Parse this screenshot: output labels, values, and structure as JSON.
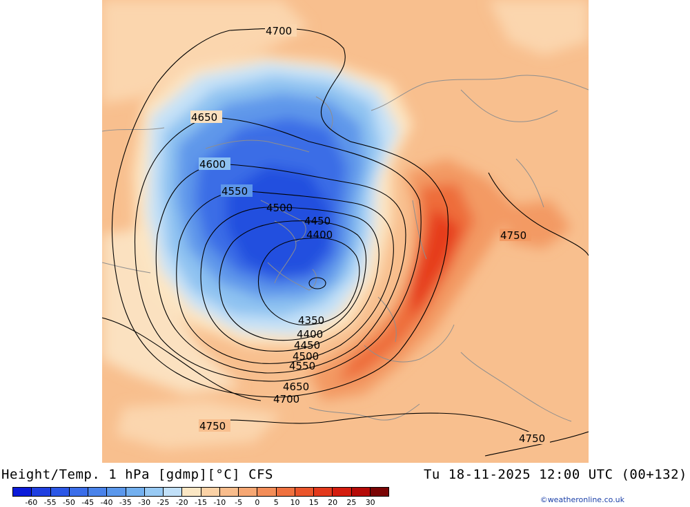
{
  "map": {
    "title": "Height/Temp. 1 hPa [gdmp][°C] CFS",
    "valid_time": "Tu 18-11-2025 12:00 UTC (00+132)",
    "credit": "©weatheronline.co.uk",
    "contour_labels": [
      "4700",
      "4650",
      "4600",
      "4550",
      "4500",
      "4450",
      "4400",
      "4350",
      "4400",
      "4450",
      "4500",
      "4550",
      "4650",
      "4700",
      "4750",
      "4750",
      "4750"
    ],
    "colorbar": {
      "labels": [
        "-60",
        "-55",
        "-50",
        "-45",
        "-40",
        "-35",
        "-30",
        "-25",
        "-20",
        "-15",
        "-10",
        "-5",
        "0",
        "5",
        "10",
        "15",
        "20",
        "25",
        "30"
      ],
      "colors": [
        "#0b1bd9",
        "#1f3fe0",
        "#2b57e6",
        "#3b6ee9",
        "#4a83ea",
        "#5b98ec",
        "#73b0ef",
        "#98caf4",
        "#c1e0f8",
        "#fbe7c4",
        "#fbd2a6",
        "#f9bd8c",
        "#f6a773",
        "#f38d58",
        "#ef713f",
        "#ea552b",
        "#e3391c",
        "#d41c0e",
        "#b50a07",
        "#7a0404"
      ]
    }
  }
}
